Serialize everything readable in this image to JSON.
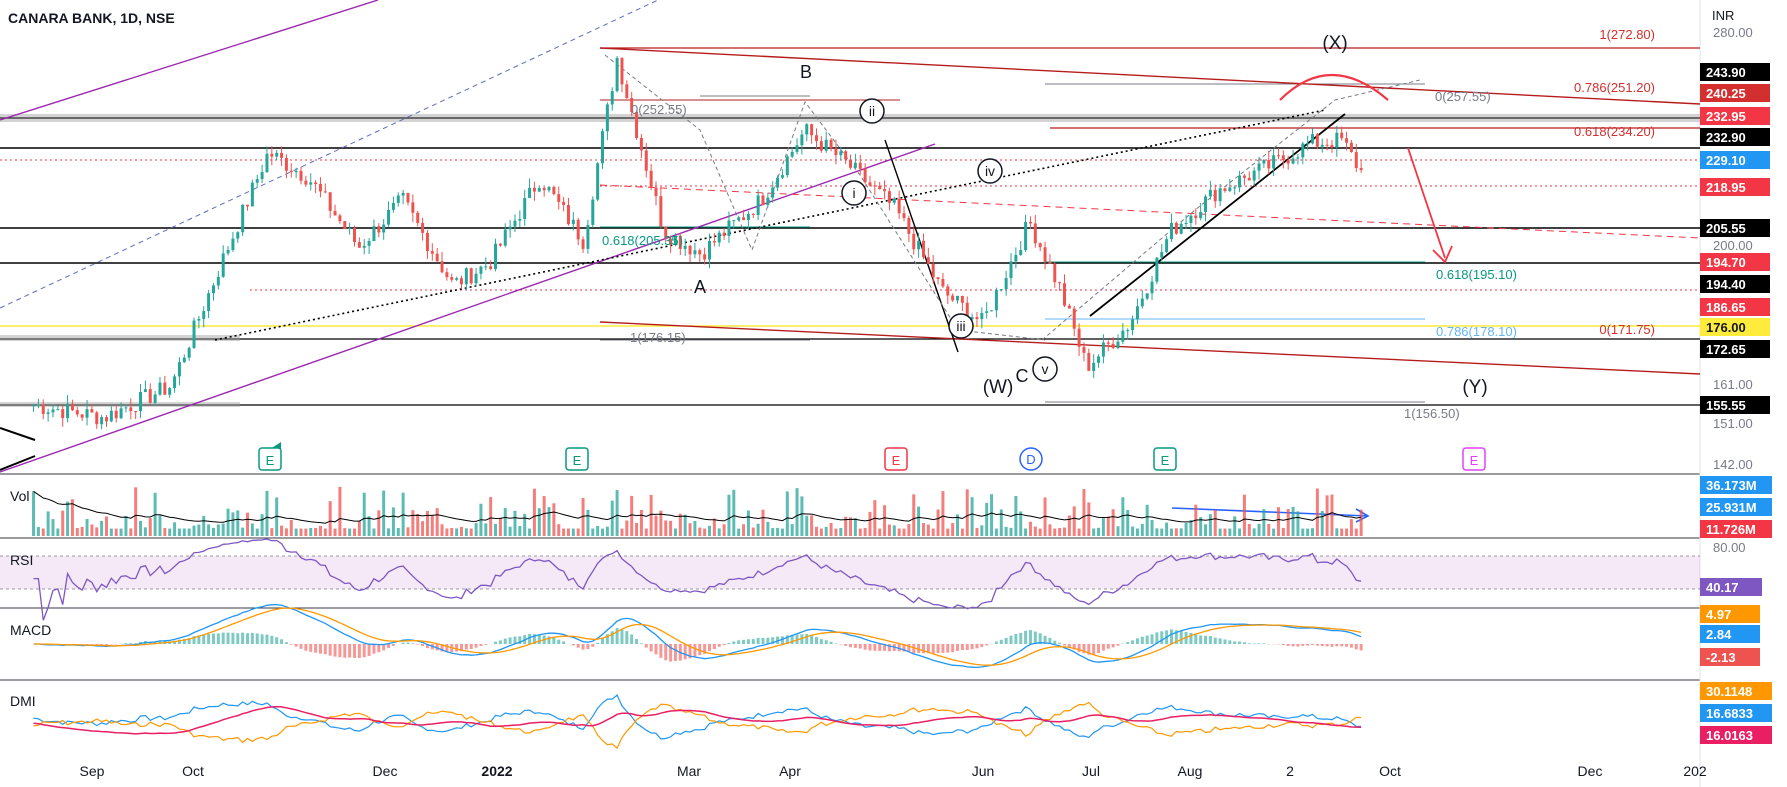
{
  "header": {
    "title": "CANARA BANK, 1D, NSE",
    "currency": "INR"
  },
  "colors": {
    "up": "#26a69a",
    "down": "#ef5350",
    "purple": "#9c27b0",
    "red": "#d32f2f",
    "blue": "#2962ff",
    "orange": "#ff9800",
    "pink": "#e91e63"
  },
  "price_axis": {
    "ticks": [
      "280.00",
      "200.00",
      "161.00",
      "151.00",
      "142.00"
    ]
  },
  "price_tags": [
    {
      "text": "243.90",
      "bg": "#000000"
    },
    {
      "text": "240.25",
      "bg": "#d32f2f"
    },
    {
      "text": "232.95",
      "bg": "#f23645"
    },
    {
      "text": "232.90",
      "bg": "#000000"
    },
    {
      "text": "229.10",
      "bg": "#2196f3"
    },
    {
      "text": "218.95",
      "bg": "#f23645"
    },
    {
      "text": "205.55",
      "bg": "#000000"
    },
    {
      "text": "194.70",
      "bg": "#f23645"
    },
    {
      "text": "194.40",
      "bg": "#000000"
    },
    {
      "text": "186.65",
      "bg": "#f23645"
    },
    {
      "text": "176.00",
      "bg": "#ffeb3b"
    },
    {
      "text": "172.65",
      "bg": "#000000"
    },
    {
      "text": "155.55",
      "bg": "#000000"
    }
  ],
  "fib_labels": [
    {
      "text": "1(272.80)",
      "color": "#d32f2f"
    },
    {
      "text": "0.786(251.20)",
      "color": "#d32f2f"
    },
    {
      "text": "0(257.55)",
      "color": "#787b86"
    },
    {
      "text": "0.618(234.20)",
      "color": "#d32f2f"
    },
    {
      "text": "0(252.55)",
      "color": "#787b86"
    },
    {
      "text": "0.618(205.35)",
      "color": "#089981"
    },
    {
      "text": "0.618(195.10)",
      "color": "#089981"
    },
    {
      "text": "0.786(178.10)",
      "color": "#64b5f6"
    },
    {
      "text": "0(171.75)",
      "color": "#d32f2f"
    },
    {
      "text": "1(176.15)",
      "color": "#787b86"
    },
    {
      "text": "1(156.50)",
      "color": "#787b86"
    }
  ],
  "wave_labels": [
    "(X)",
    "B",
    "A",
    "(W)",
    "C",
    "(Y)"
  ],
  "circled_labels": [
    "ii",
    "iv",
    "i",
    "iii",
    "v"
  ],
  "event_markers": [
    {
      "letter": "E",
      "color": "#089981"
    },
    {
      "letter": "E",
      "color": "#089981"
    },
    {
      "letter": "E",
      "color": "#f23645"
    },
    {
      "letter": "D",
      "color": "#2962ff"
    },
    {
      "letter": "E",
      "color": "#089981"
    },
    {
      "letter": "E",
      "color": "#e040fb"
    }
  ],
  "indicators": {
    "vol": {
      "label": "Vol",
      "tags": [
        {
          "text": "36.173M",
          "bg": "#2196f3"
        },
        {
          "text": "25.931M",
          "bg": "#2196f3"
        },
        {
          "text": "11.726M",
          "bg": "#f23645"
        }
      ]
    },
    "rsi": {
      "label": "RSI",
      "tick": "80.00",
      "tags": [
        {
          "text": "40.17",
          "bg": "#7e57c2"
        }
      ]
    },
    "macd": {
      "label": "MACD",
      "tags": [
        {
          "text": "4.97",
          "bg": "#ff9800"
        },
        {
          "text": "2.84",
          "bg": "#2196f3"
        },
        {
          "text": "-2.13",
          "bg": "#ef5350"
        }
      ]
    },
    "dmi": {
      "label": "DMI",
      "tags": [
        {
          "text": "30.1148",
          "bg": "#ff9800"
        },
        {
          "text": "16.6833",
          "bg": "#2196f3"
        },
        {
          "text": "16.0163",
          "bg": "#e91e63"
        }
      ]
    }
  },
  "time_axis": {
    "labels": [
      "Sep",
      "Oct",
      "Dec",
      "2022",
      "Mar",
      "Apr",
      "Jun",
      "Jul",
      "Aug",
      "2",
      "Oct",
      "Dec",
      "202"
    ]
  },
  "chart_data": {
    "type": "candlestick",
    "title": "CANARA BANK, 1D, NSE",
    "ylabel": "INR",
    "ylim": [
      140,
      282
    ],
    "key_levels": [
      272.8,
      251.2,
      243.9,
      240.25,
      232.95,
      232.9,
      229.1,
      218.95,
      205.55,
      194.7,
      194.4,
      186.65,
      176.0,
      172.65,
      155.55
    ],
    "path_points": [
      [
        "2021-08-20",
        160
      ],
      [
        "2021-09-10",
        156
      ],
      [
        "2021-09-30",
        166
      ],
      [
        "2021-10-15",
        205
      ],
      [
        "2021-10-29",
        240
      ],
      [
        "2021-11-10",
        232
      ],
      [
        "2021-11-25",
        210
      ],
      [
        "2021-12-08",
        225
      ],
      [
        "2021-12-23",
        198
      ],
      [
        "2022-01-03",
        205
      ],
      [
        "2022-01-18",
        232
      ],
      [
        "2022-01-31",
        212
      ],
      [
        "2022-02-10",
        270
      ],
      [
        "2022-02-24",
        215
      ],
      [
        "2022-03-07",
        208
      ],
      [
        "2022-03-25",
        225
      ],
      [
        "2022-04-07",
        247
      ],
      [
        "2022-04-20",
        236
      ],
      [
        "2022-05-04",
        222
      ],
      [
        "2022-05-18",
        196
      ],
      [
        "2022-05-30",
        186
      ],
      [
        "2022-06-13",
        218
      ],
      [
        "2022-06-22",
        197
      ],
      [
        "2022-06-30",
        172
      ],
      [
        "2022-07-13",
        186
      ],
      [
        "2022-07-25",
        215
      ],
      [
        "2022-08-08",
        228
      ],
      [
        "2022-08-24",
        236
      ],
      [
        "2022-09-05",
        243
      ],
      [
        "2022-09-14",
        243.9
      ],
      [
        "2022-09-21",
        232
      ]
    ]
  }
}
